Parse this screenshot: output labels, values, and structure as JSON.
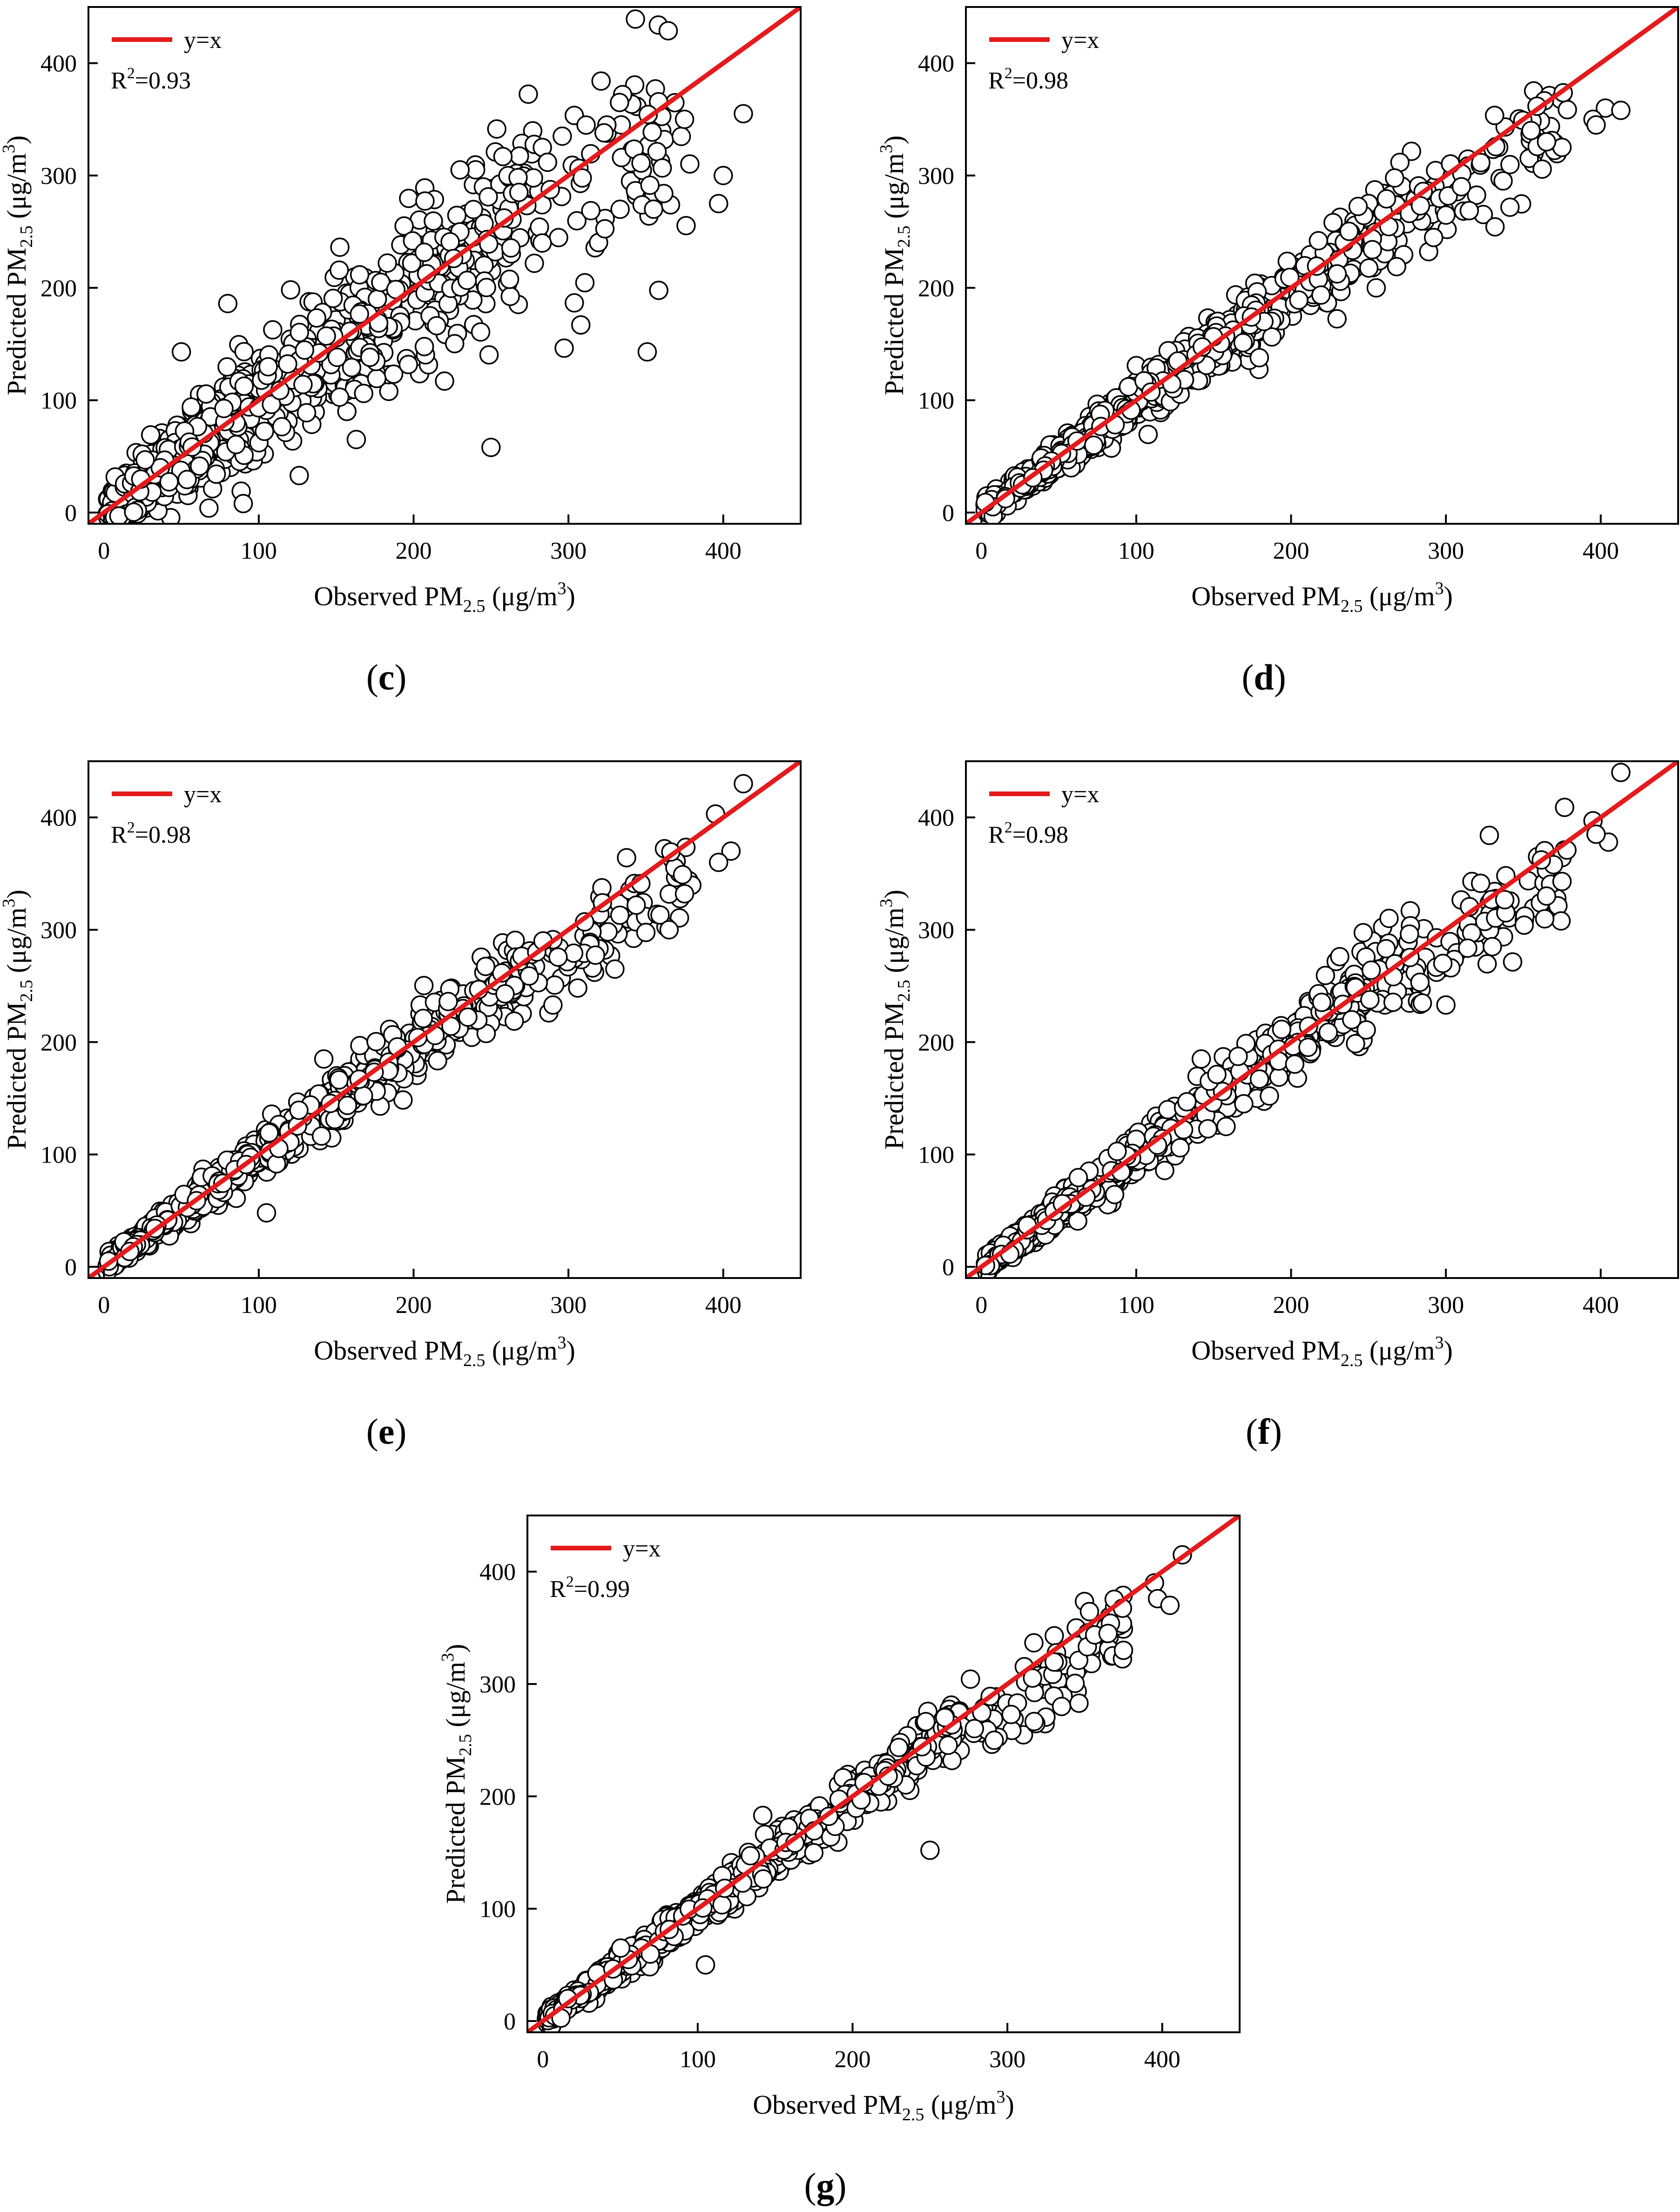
{
  "figure": {
    "line_color": "#e41a1c",
    "marker_edge_color": "#000000",
    "marker_fill_color": "#ffffff"
  },
  "chart_data": [
    {
      "id": "c",
      "caption_letter": "c",
      "type": "scatter",
      "xlabel_main": "Observed PM",
      "xlabel_sub": "2.5",
      "xlabel_unit": " (μg/m",
      "xlabel_sup": "3",
      "xlabel_end": ")",
      "ylabel_main": "Predicted PM",
      "ylabel_sub": "2.5",
      "ylabel_unit": " (μg/m",
      "ylabel_sup": "3",
      "ylabel_end": ")",
      "xlim": [
        -10,
        450
      ],
      "ylim": [
        -10,
        450
      ],
      "xticks": [
        0,
        100,
        200,
        300,
        400
      ],
      "yticks": [
        0,
        100,
        200,
        300,
        400
      ],
      "legend": {
        "label": "y=x",
        "r2_prefix": "R",
        "r2_sup": "2",
        "r2_value": "=0.93"
      },
      "reference_line": "y=x",
      "r2": 0.93,
      "approx_points": 1000,
      "noise_sigma": 22,
      "outliers": [
        [
          335,
          372
        ],
        [
          333,
          365
        ],
        [
          413,
          355
        ],
        [
          375,
          350
        ],
        [
          400,
          300
        ],
        [
          397,
          275
        ],
        [
          308,
          167
        ],
        [
          250,
          58
        ],
        [
          90,
          8
        ],
        [
          220,
          117
        ],
        [
          163,
          65
        ],
        [
          80,
          186
        ],
        [
          296,
          335
        ],
        [
          323,
          338
        ],
        [
          50,
          143
        ],
        [
          230,
          305
        ],
        [
          268,
          285
        ],
        [
          355,
          270
        ]
      ]
    },
    {
      "id": "d",
      "caption_letter": "d",
      "type": "scatter",
      "xlabel_main": "Observed PM",
      "xlabel_sub": "2.5",
      "xlabel_unit": " (μg/m",
      "xlabel_sup": "3",
      "xlabel_end": ")",
      "ylabel_main": "Predicted PM",
      "ylabel_sub": "2.5",
      "ylabel_unit": " (μg/m",
      "ylabel_sup": "3",
      "ylabel_end": ")",
      "xlim": [
        -10,
        450
      ],
      "ylim": [
        -10,
        450
      ],
      "xticks": [
        0,
        100,
        200,
        300,
        400
      ],
      "yticks": [
        0,
        100,
        200,
        300,
        400
      ],
      "legend": {
        "label": "y=x",
        "r2_prefix": "R",
        "r2_sup": "2",
        "r2_value": "=0.98"
      },
      "reference_line": "y=x",
      "r2": 0.98,
      "approx_points": 1000,
      "noise_sigma": 9,
      "outliers": [
        [
          403,
          360
        ],
        [
          413,
          358
        ],
        [
          395,
          350
        ],
        [
          397,
          345
        ],
        [
          375,
          325
        ],
        [
          365,
          330
        ],
        [
          355,
          340
        ],
        [
          255,
          200
        ],
        [
          310,
          290
        ]
      ]
    },
    {
      "id": "e",
      "caption_letter": "e",
      "type": "scatter",
      "xlabel_main": "Observed PM",
      "xlabel_sub": "2.5",
      "xlabel_unit": " (μg/m",
      "xlabel_sup": "3",
      "xlabel_end": ")",
      "ylabel_main": "Predicted PM",
      "ylabel_sub": "2.5",
      "ylabel_unit": " (μg/m",
      "ylabel_sup": "3",
      "ylabel_end": ")",
      "xlim": [
        -10,
        450
      ],
      "ylim": [
        -10,
        450
      ],
      "xticks": [
        0,
        100,
        200,
        300,
        400
      ],
      "yticks": [
        0,
        100,
        200,
        300,
        400
      ],
      "legend": {
        "label": "y=x",
        "r2_prefix": "R",
        "r2_sup": "2",
        "r2_value": "=0.98"
      },
      "reference_line": "y=x",
      "r2": 0.98,
      "approx_points": 1000,
      "noise_sigma": 8,
      "outliers": [
        [
          413,
          430
        ],
        [
          395,
          403
        ],
        [
          405,
          370
        ],
        [
          397,
          360
        ],
        [
          375,
          332
        ],
        [
          365,
          300
        ],
        [
          330,
          265
        ],
        [
          105,
          48
        ],
        [
          290,
          233
        ],
        [
          142,
          185
        ]
      ]
    },
    {
      "id": "f",
      "caption_letter": "f",
      "type": "scatter",
      "xlabel_main": "Observed PM",
      "xlabel_sub": "2.5",
      "xlabel_unit": " (μg/m",
      "xlabel_sup": "3",
      "xlabel_end": ")",
      "ylabel_main": "Predicted PM",
      "ylabel_sub": "2.5",
      "ylabel_unit": " (μg/m",
      "ylabel_sup": "3",
      "ylabel_end": ")",
      "xlim": [
        -10,
        450
      ],
      "ylim": [
        -10,
        450
      ],
      "xticks": [
        0,
        100,
        200,
        300,
        400
      ],
      "yticks": [
        0,
        100,
        200,
        300,
        400
      ],
      "legend": {
        "label": "y=x",
        "r2_prefix": "R",
        "r2_sup": "2",
        "r2_value": "=0.98"
      },
      "reference_line": "y=x",
      "r2": 0.98,
      "approx_points": 1000,
      "noise_sigma": 9,
      "outliers": [
        [
          413,
          440
        ],
        [
          395,
          397
        ],
        [
          405,
          378
        ],
        [
          397,
          385
        ],
        [
          375,
          343
        ],
        [
          365,
          330
        ],
        [
          300,
          233
        ],
        [
          330,
          285
        ],
        [
          142,
          185
        ]
      ]
    },
    {
      "id": "g",
      "caption_letter": "g",
      "type": "scatter",
      "xlabel_main": "Observed PM",
      "xlabel_sub": "2.5",
      "xlabel_unit": " (μg/m",
      "xlabel_sup": "3",
      "xlabel_end": ")",
      "ylabel_main": "Predicted PM",
      "ylabel_sub": "2.5",
      "ylabel_unit": " (μg/m",
      "ylabel_sup": "3",
      "ylabel_end": ")",
      "xlim": [
        -10,
        450
      ],
      "ylim": [
        -10,
        450
      ],
      "xticks": [
        0,
        100,
        200,
        300,
        400
      ],
      "yticks": [
        0,
        100,
        200,
        300,
        400
      ],
      "legend": {
        "label": "y=x",
        "r2_prefix": "R",
        "r2_sup": "2",
        "r2_value": "=0.99"
      },
      "reference_line": "y=x",
      "r2": 0.99,
      "approx_points": 1000,
      "noise_sigma": 7,
      "outliers": [
        [
          413,
          415
        ],
        [
          395,
          390
        ],
        [
          397,
          376
        ],
        [
          405,
          370
        ],
        [
          375,
          330
        ],
        [
          365,
          345
        ],
        [
          250,
          152
        ],
        [
          105,
          50
        ],
        [
          142,
          183
        ],
        [
          335,
          280
        ]
      ]
    }
  ]
}
